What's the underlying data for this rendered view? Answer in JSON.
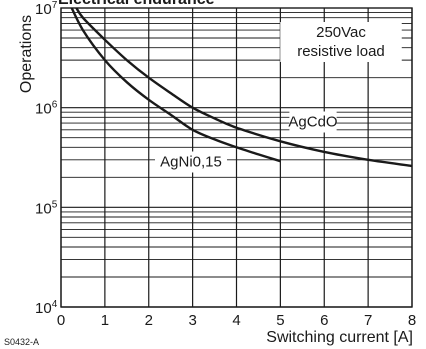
{
  "chart_data": {
    "type": "line",
    "title": "Electrical endurance",
    "xlabel": "Switching current [A]",
    "ylabel": "Operations",
    "figure_code": "S0432-A",
    "xlim": [
      0,
      8
    ],
    "ylim": [
      10000,
      10000000
    ],
    "y_scale": "log",
    "grid": true,
    "x_ticks": [
      "0",
      "1",
      "2",
      "3",
      "4",
      "5",
      "6",
      "7",
      "8"
    ],
    "y_ticks": [
      {
        "base": "10",
        "exp": "4",
        "value": 10000
      },
      {
        "base": "10",
        "exp": "5",
        "value": 100000
      },
      {
        "base": "10",
        "exp": "6",
        "value": 1000000
      },
      {
        "base": "10",
        "exp": "7",
        "value": 10000000
      }
    ],
    "annotation": {
      "line1": "250Vac",
      "line2": "resistive load"
    },
    "series": [
      {
        "name": "AgCdO",
        "color": "#1a1a1a",
        "x": [
          0.3,
          0.5,
          1.0,
          1.5,
          2.0,
          2.5,
          3.0,
          3.5,
          4.0,
          5.0,
          6.0,
          7.0,
          8.0
        ],
        "y": [
          11000000,
          8000000,
          4800000,
          3000000,
          2000000,
          1400000,
          1000000,
          780000,
          630000,
          460000,
          360000,
          300000,
          260000
        ]
      },
      {
        "name": "AgNi0,15",
        "color": "#1a1a1a",
        "x": [
          0.2,
          0.5,
          1.0,
          1.5,
          2.0,
          2.5,
          3.0,
          3.5,
          4.0,
          4.5,
          5.0
        ],
        "y": [
          11000000,
          6000000,
          3000000,
          1800000,
          1200000,
          850000,
          600000,
          480000,
          400000,
          340000,
          290000
        ]
      }
    ]
  }
}
